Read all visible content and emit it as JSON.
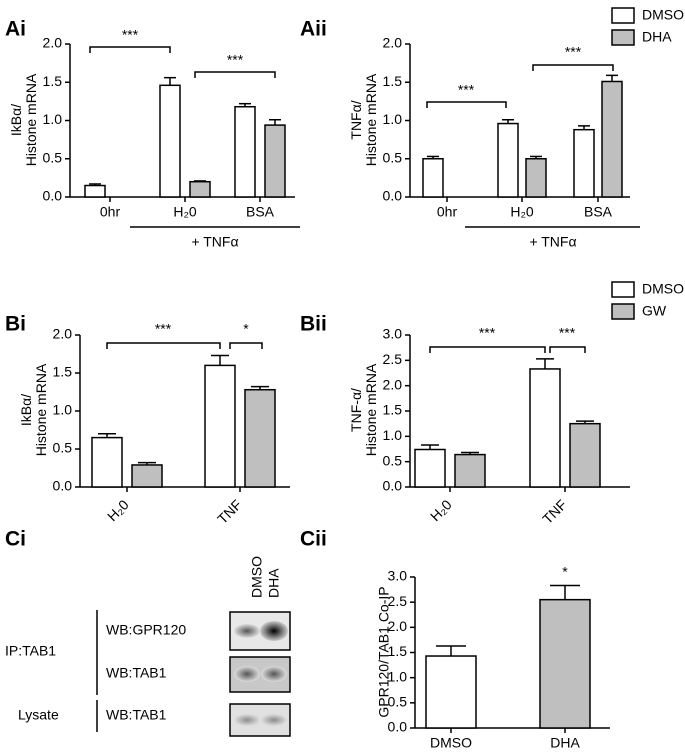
{
  "chart_data": [
    {
      "type": "bar",
      "panel_label": "Ai",
      "ylabel": [
        "IkBα/",
        "Histone mRNA"
      ],
      "categories": [
        "0hr",
        "H₂0",
        "BSA"
      ],
      "series": [
        {
          "color": "#ffffff",
          "values": [
            0.15,
            1.46,
            1.18
          ],
          "errors": [
            0.02,
            0.1,
            0.04
          ]
        },
        {
          "color": "#bfbfbf",
          "values": [
            null,
            0.2,
            0.94
          ],
          "errors": [
            null,
            0.01,
            0.07
          ]
        }
      ],
      "ylim": [
        0,
        2
      ],
      "yticks": [
        {
          "value": 0,
          "label": "0.0"
        },
        0.5,
        {
          "value": 1,
          "label": "1.0"
        },
        1.5,
        {
          "value": 2,
          "label": "2.0"
        }
      ],
      "annotations": [
        "***",
        "***"
      ],
      "group_label": "+ TNFα"
    },
    {
      "type": "bar",
      "panel_label": "Aii",
      "ylabel": [
        "TNFα/",
        "Histone mRNA"
      ],
      "categories": [
        "0hr",
        "H₂0",
        "BSA"
      ],
      "series": [
        {
          "name": "DMSO",
          "color": "#ffffff",
          "values": [
            0.5,
            0.96,
            0.88
          ],
          "errors": [
            0.03,
            0.05,
            0.05
          ]
        },
        {
          "name": "DHA",
          "color": "#bfbfbf",
          "values": [
            null,
            0.5,
            1.51
          ],
          "errors": [
            null,
            0.03,
            0.08
          ]
        }
      ],
      "ylim": [
        0,
        2
      ],
      "yticks": [
        {
          "value": 0,
          "label": "0.0"
        },
        0.5,
        {
          "value": 1,
          "label": "1.0"
        },
        1.5,
        {
          "value": 2,
          "label": "2.0"
        }
      ],
      "annotations": [
        "***",
        "***"
      ],
      "group_label": "+ TNFα",
      "legend": "top-right"
    },
    {
      "type": "bar",
      "panel_label": "Bi",
      "ylabel": [
        "IkBα/",
        "Histone mRNA"
      ],
      "categories": [
        "H₂0",
        "TNF"
      ],
      "series": [
        {
          "color": "#ffffff",
          "values": [
            0.65,
            1.6
          ],
          "errors": [
            0.05,
            0.13
          ]
        },
        {
          "color": "#bfbfbf",
          "values": [
            0.29,
            1.28
          ],
          "errors": [
            0.03,
            0.04
          ]
        }
      ],
      "ylim": [
        0,
        2
      ],
      "yticks": [
        {
          "value": 0,
          "label": "0.0"
        },
        0.5,
        {
          "value": 1,
          "label": "1.0"
        },
        1.5,
        {
          "value": 2,
          "label": "2.0"
        }
      ],
      "annotations": [
        "***",
        "*"
      ]
    },
    {
      "type": "bar",
      "panel_label": "Bii",
      "ylabel": [
        "TNF-α/",
        "Histone mRNA"
      ],
      "categories": [
        "H₂0",
        "TNF"
      ],
      "series": [
        {
          "name": "DMSO",
          "color": "#ffffff",
          "values": [
            0.74,
            2.33
          ],
          "errors": [
            0.09,
            0.2
          ]
        },
        {
          "name": "GW",
          "color": "#bfbfbf",
          "values": [
            0.64,
            1.25
          ],
          "errors": [
            0.04,
            0.05
          ]
        }
      ],
      "ylim": [
        0,
        3
      ],
      "yticks": [
        {
          "value": 0,
          "label": "0.0"
        },
        0.5,
        {
          "value": 1,
          "label": "1.0"
        },
        1.5,
        {
          "value": 2,
          "label": "2.0"
        },
        2.5,
        {
          "value": 3,
          "label": "3.0"
        }
      ],
      "annotations": [
        "***",
        "***"
      ],
      "legend": "top-right"
    },
    {
      "type": "bar",
      "panel_label": "Cii",
      "ylabel": [
        "GPR120/TAB1 Co-IP"
      ],
      "categories": [
        "DMSO",
        "DHA"
      ],
      "series": [
        {
          "color": "#ffffff",
          "values": [
            1.43,
            null
          ],
          "errors": [
            0.2,
            null
          ]
        },
        {
          "color": "#bfbfbf",
          "values": [
            null,
            2.55
          ],
          "errors": [
            null,
            0.28
          ]
        }
      ],
      "ylim": [
        0,
        3
      ],
      "yticks": [
        {
          "value": 0,
          "label": "0.0"
        },
        0.5,
        {
          "value": 1,
          "label": "1.0"
        },
        1.5,
        {
          "value": 2,
          "label": "2.0"
        },
        2.5,
        {
          "value": 3,
          "label": "3.0"
        }
      ],
      "annotations": [
        "*"
      ]
    }
  ],
  "blot": {
    "panel_label": "Ci",
    "lanes": [
      "DMSO",
      "DHA"
    ],
    "ip": "IP:TAB1",
    "lysate": "Lysate",
    "rows": [
      "WB:GPR120",
      "WB:TAB1",
      "WB:TAB1"
    ]
  }
}
